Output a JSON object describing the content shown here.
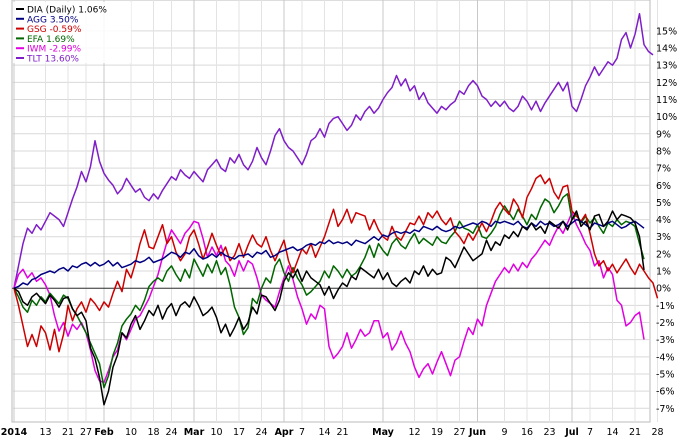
{
  "chart_data": {
    "type": "line",
    "title": "",
    "xlabel": "",
    "ylabel": "",
    "y_unit": "%",
    "ylim": [
      -7.8,
      16.8
    ],
    "y_ticks": [
      -7,
      -6,
      -5,
      -4,
      -3,
      -2,
      -1,
      0,
      1,
      2,
      3,
      4,
      5,
      6,
      7,
      8,
      9,
      10,
      11,
      12,
      13,
      14,
      15
    ],
    "y_tick_labels": [
      "-7%",
      "-6%",
      "-5%",
      "-4%",
      "-3%",
      "-2%",
      "-1%",
      "0%",
      "1%",
      "2%",
      "3%",
      "4%",
      "5%",
      "6%",
      "7%",
      "8%",
      "9%",
      "10%",
      "11%",
      "12%",
      "13%",
      "14%",
      "15%"
    ],
    "grid": true,
    "legend_placement": "top-left",
    "x_ticks": [
      {
        "label": "2014",
        "x": 0,
        "major": true
      },
      {
        "label": "13",
        "x": 7,
        "major": false
      },
      {
        "label": "21",
        "x": 12,
        "major": false
      },
      {
        "label": "27",
        "x": 16,
        "major": false
      },
      {
        "label": "Feb",
        "x": 20,
        "major": true
      },
      {
        "label": "10",
        "x": 26,
        "major": false
      },
      {
        "label": "18",
        "x": 31,
        "major": false
      },
      {
        "label": "24",
        "x": 35,
        "major": false
      },
      {
        "label": "Mar",
        "x": 40,
        "major": true
      },
      {
        "label": "10",
        "x": 45,
        "major": false
      },
      {
        "label": "17",
        "x": 50,
        "major": false
      },
      {
        "label": "24",
        "x": 55,
        "major": false
      },
      {
        "label": "Apr",
        "x": 60,
        "major": true
      },
      {
        "label": "7",
        "x": 64,
        "major": false
      },
      {
        "label": "14",
        "x": 69,
        "major": false
      },
      {
        "label": "21",
        "x": 73,
        "major": false
      },
      {
        "label": "May",
        "x": 82,
        "major": true
      },
      {
        "label": "12",
        "x": 89,
        "major": false
      },
      {
        "label": "19",
        "x": 94,
        "major": false
      },
      {
        "label": "27",
        "x": 99,
        "major": false
      },
      {
        "label": "Jun",
        "x": 103,
        "major": true
      },
      {
        "label": "9",
        "x": 109,
        "major": false
      },
      {
        "label": "16",
        "x": 114,
        "major": false
      },
      {
        "label": "23",
        "x": 119,
        "major": false
      },
      {
        "label": "Jul",
        "x": 124,
        "major": true
      },
      {
        "label": "7",
        "x": 128,
        "major": false
      },
      {
        "label": "14",
        "x": 133,
        "major": false
      },
      {
        "label": "21",
        "x": 138,
        "major": false
      },
      {
        "label": "28",
        "x": 143,
        "major": false
      }
    ],
    "series": [
      {
        "name": "DIA (Daily)",
        "legend_value": "1.06%",
        "color": "#000000",
        "values": [
          0.0,
          -0.2,
          -0.8,
          -1.0,
          -0.5,
          -0.3,
          -0.6,
          -0.9,
          -0.4,
          -0.7,
          -1.1,
          -0.6,
          -0.5,
          -1.2,
          -1.6,
          -1.4,
          -1.9,
          -3.5,
          -4.1,
          -5.2,
          -6.8,
          -6.0,
          -4.6,
          -3.9,
          -2.6,
          -2.9,
          -2.1,
          -1.6,
          -2.4,
          -1.9,
          -1.3,
          -1.6,
          -1.0,
          -1.8,
          -1.2,
          -0.9,
          -1.6,
          -1.0,
          -0.8,
          -1.1,
          -0.5,
          -1.0,
          -1.6,
          -1.4,
          -1.1,
          -1.7,
          -2.6,
          -2.1,
          -2.8,
          -2.3,
          -1.7,
          -2.4,
          -2.0,
          -1.1,
          -1.5,
          -0.4,
          -0.5,
          -0.9,
          -1.3,
          -0.7,
          0.4,
          0.9,
          0.6,
          1.1,
          0.4,
          1.0,
          0.6,
          0.4,
          0.2,
          -0.4,
          0.1,
          -0.6,
          -0.1,
          0.3,
          0.1,
          0.7,
          0.5,
          1.2,
          1.0,
          0.8,
          0.6,
          1.1,
          0.5,
          0.9,
          0.3,
          0.1,
          0.4,
          0.6,
          0.3,
          1.0,
          0.8,
          1.3,
          0.7,
          1.1,
          0.8,
          0.9,
          1.8,
          1.6,
          1.2,
          1.8,
          2.4,
          2.0,
          1.6,
          1.8,
          2.0,
          2.8,
          2.2,
          2.7,
          2.5,
          3.1,
          2.9,
          3.3,
          3.0,
          3.6,
          3.4,
          3.8,
          3.4,
          3.6,
          3.2,
          3.9,
          3.7,
          3.5,
          3.9,
          3.4,
          4.0,
          4.5,
          3.6,
          3.9,
          3.4,
          4.2,
          4.3,
          3.6,
          3.9,
          4.5,
          4.0,
          4.3,
          4.2,
          4.1,
          3.8,
          3.0,
          1.06
        ]
      },
      {
        "name": "AGG",
        "legend_value": "3.50%",
        "color": "#000080",
        "values": [
          0.0,
          0.1,
          0.3,
          0.2,
          0.5,
          0.6,
          0.8,
          0.9,
          1.0,
          0.9,
          1.1,
          1.2,
          1.0,
          1.3,
          1.2,
          1.4,
          1.5,
          1.3,
          1.5,
          1.3,
          1.4,
          1.6,
          1.3,
          1.5,
          1.2,
          1.3,
          1.4,
          1.6,
          1.5,
          1.6,
          1.8,
          1.5,
          1.6,
          1.7,
          1.9,
          2.1,
          2.0,
          1.8,
          2.1,
          2.0,
          2.3,
          1.9,
          1.7,
          1.8,
          2.0,
          1.8,
          2.1,
          1.9,
          1.8,
          1.7,
          1.9,
          1.9,
          2.0,
          1.8,
          2.1,
          2.0,
          2.2,
          1.8,
          1.9,
          2.1,
          2.2,
          2.3,
          2.4,
          2.2,
          2.3,
          2.5,
          2.6,
          2.5,
          2.7,
          2.6,
          2.8,
          2.6,
          2.7,
          2.6,
          2.7,
          2.5,
          2.8,
          2.7,
          2.6,
          2.8,
          3.0,
          2.8,
          3.1,
          3.0,
          3.2,
          3.3,
          3.2,
          3.3,
          3.2,
          3.4,
          3.3,
          3.6,
          3.5,
          3.4,
          3.6,
          3.4,
          3.3,
          3.4,
          3.6,
          3.5,
          3.6,
          3.7,
          3.8,
          3.7,
          3.9,
          3.8,
          3.6,
          3.9,
          3.8,
          3.9,
          3.8,
          3.7,
          3.9,
          3.6,
          3.5,
          3.8,
          3.6,
          3.9,
          3.7,
          3.8,
          3.6,
          3.7,
          3.9,
          3.6,
          3.8,
          4.0,
          3.9,
          3.7,
          3.5,
          3.8,
          3.7,
          3.6,
          3.8,
          3.9,
          3.7,
          3.5,
          3.6,
          3.8,
          3.9,
          3.7,
          3.5
        ]
      },
      {
        "name": "GSG",
        "legend_value": "-0.59%",
        "color": "#cc0000",
        "values": [
          0.0,
          -1.0,
          -2.2,
          -3.4,
          -2.7,
          -3.4,
          -2.2,
          -2.6,
          -3.6,
          -2.4,
          -3.7,
          -2.7,
          -1.0,
          -1.9,
          -1.2,
          -0.8,
          -1.4,
          -0.6,
          -0.9,
          -1.3,
          -0.8,
          -1.1,
          -0.3,
          0.4,
          -0.2,
          1.1,
          0.6,
          1.5,
          2.6,
          3.4,
          2.4,
          2.3,
          3.0,
          3.7,
          2.6,
          3.0,
          2.1,
          1.6,
          2.0,
          3.0,
          3.4,
          2.6,
          1.7,
          2.4,
          3.2,
          2.5,
          1.9,
          2.4,
          1.6,
          1.9,
          2.6,
          1.8,
          2.5,
          3.1,
          2.6,
          2.4,
          3.0,
          2.2,
          1.6,
          2.2,
          2.8,
          1.6,
          0.9,
          1.6,
          2.3,
          2.0,
          2.6,
          1.8,
          2.4,
          3.0,
          3.8,
          4.6,
          3.6,
          4.0,
          4.6,
          3.8,
          4.4,
          4.3,
          4.2,
          3.4,
          4.0,
          3.4,
          3.0,
          2.8,
          3.6,
          3.0,
          2.8,
          3.3,
          3.8,
          3.7,
          4.2,
          3.7,
          4.4,
          4.1,
          4.5,
          4.0,
          3.7,
          4.1,
          3.3,
          3.0,
          2.6,
          3.2,
          2.8,
          3.3,
          3.8,
          3.3,
          3.9,
          4.6,
          5.0,
          4.6,
          4.3,
          5.2,
          4.8,
          4.1,
          5.3,
          5.8,
          6.4,
          6.6,
          6.1,
          6.4,
          5.6,
          5.2,
          5.9,
          6.0,
          4.5,
          4.2,
          3.9,
          4.3,
          3.2,
          2.0,
          1.3,
          1.6,
          1.0,
          1.4,
          0.9,
          1.3,
          1.7,
          1.2,
          0.8,
          1.4,
          1.0,
          0.6,
          0.3,
          -0.59
        ]
      },
      {
        "name": "EFA",
        "legend_value": "1.69%",
        "color": "#006600",
        "values": [
          0.0,
          -0.5,
          -1.1,
          -1.4,
          -0.7,
          -1.0,
          -0.5,
          -0.8,
          -0.3,
          -0.6,
          -0.9,
          -0.4,
          -0.6,
          -1.2,
          -1.6,
          -2.1,
          -2.6,
          -3.2,
          -3.8,
          -4.4,
          -5.8,
          -5.1,
          -3.9,
          -3.2,
          -2.2,
          -1.8,
          -1.5,
          -1.0,
          -1.3,
          -0.7,
          0.1,
          0.4,
          0.6,
          0.4,
          1.0,
          1.3,
          0.8,
          0.4,
          1.1,
          0.6,
          1.7,
          1.2,
          0.7,
          1.4,
          0.9,
          1.6,
          0.8,
          1.2,
          0.2,
          -1.1,
          -1.7,
          -2.7,
          -2.3,
          -0.6,
          -0.9,
          0.0,
          0.6,
          0.3,
          1.3,
          1.7,
          0.9,
          0.4,
          1.2,
          0.6,
          0.2,
          -0.4,
          -0.2,
          0.1,
          0.4,
          1.0,
          0.6,
          1.3,
          1.0,
          0.6,
          1.1,
          0.7,
          0.9,
          1.3,
          1.8,
          2.5,
          1.8,
          2.6,
          2.2,
          1.9,
          2.6,
          2.9,
          2.5,
          2.3,
          2.8,
          3.2,
          2.6,
          2.9,
          2.7,
          2.5,
          3.0,
          2.7,
          2.6,
          3.0,
          3.3,
          3.9,
          3.5,
          3.4,
          3.2,
          3.7,
          3.0,
          2.9,
          3.2,
          3.6,
          4.3,
          4.8,
          4.4,
          4.0,
          4.6,
          4.2,
          3.7,
          4.3,
          4.0,
          4.7,
          5.2,
          5.0,
          4.4,
          4.8,
          5.3,
          5.5,
          4.0,
          4.3,
          3.8,
          4.2,
          3.8,
          4.1,
          3.6,
          3.2,
          3.8,
          3.6,
          4.0,
          3.7,
          3.9,
          3.8,
          3.6,
          2.6,
          1.69
        ]
      },
      {
        "name": "IWM",
        "legend_value": "-2.99%",
        "color": "#e000e0",
        "values": [
          0.0,
          0.8,
          1.1,
          0.6,
          0.9,
          0.4,
          0.6,
          0.2,
          -0.4,
          -1.6,
          -2.5,
          -2.0,
          -2.8,
          -2.1,
          -2.4,
          -2.0,
          -2.6,
          -3.6,
          -4.8,
          -5.4,
          -5.5,
          -4.8,
          -4.0,
          -3.6,
          -2.6,
          -3.0,
          -2.4,
          -1.8,
          -1.6,
          -1.1,
          -0.6,
          0.1,
          0.8,
          1.8,
          2.7,
          3.4,
          3.0,
          2.6,
          3.2,
          3.5,
          3.9,
          3.8,
          2.9,
          1.8,
          2.4,
          1.9,
          2.5,
          1.6,
          1.3,
          0.7,
          1.6,
          1.0,
          1.6,
          1.4,
          0.6,
          -0.4,
          -0.7,
          -0.9,
          -1.1,
          -0.2,
          0.6,
          1.3,
          0.5,
          -0.5,
          -1.2,
          -2.1,
          -1.5,
          -1.8,
          -1.0,
          -1.2,
          -3.4,
          -4.1,
          -3.8,
          -3.4,
          -2.6,
          -3.5,
          -3.0,
          -2.4,
          -2.8,
          -2.6,
          -1.9,
          -1.9,
          -2.9,
          -2.6,
          -3.6,
          -3.2,
          -2.5,
          -3.2,
          -3.7,
          -4.6,
          -5.2,
          -4.7,
          -4.4,
          -5.0,
          -4.3,
          -3.7,
          -4.4,
          -5.1,
          -4.2,
          -4.0,
          -3.1,
          -2.3,
          -2.7,
          -1.8,
          -2.2,
          -1.0,
          -0.3,
          0.4,
          0.8,
          1.2,
          0.9,
          1.4,
          1.0,
          1.5,
          1.2,
          1.7,
          2.0,
          2.4,
          2.8,
          2.5,
          3.1,
          3.6,
          3.2,
          3.8,
          4.4,
          3.7,
          3.2,
          2.6,
          2.2,
          1.3,
          1.6,
          0.6,
          1.2,
          0.8,
          -0.7,
          -1.0,
          -2.2,
          -2.0,
          -1.6,
          -1.4,
          -2.99
        ]
      },
      {
        "name": "TLT",
        "legend_value": "13.60%",
        "color": "#7f1ec8",
        "values": [
          0.0,
          1.3,
          2.6,
          3.5,
          3.2,
          3.7,
          3.4,
          3.9,
          4.4,
          4.2,
          4.0,
          3.6,
          4.4,
          5.2,
          5.9,
          6.8,
          6.2,
          7.1,
          8.6,
          7.4,
          6.7,
          6.3,
          6.0,
          5.5,
          5.8,
          6.4,
          6.0,
          5.6,
          5.8,
          5.3,
          5.1,
          5.5,
          5.2,
          5.7,
          6.1,
          6.5,
          6.3,
          6.9,
          6.6,
          6.4,
          6.8,
          6.5,
          6.2,
          6.9,
          7.2,
          7.5,
          7.0,
          6.8,
          7.6,
          7.3,
          7.8,
          7.2,
          6.9,
          7.4,
          8.2,
          7.6,
          7.2,
          8.0,
          8.9,
          9.3,
          8.6,
          8.2,
          8.0,
          7.6,
          7.2,
          7.8,
          8.6,
          8.8,
          9.3,
          8.8,
          9.6,
          9.9,
          10.0,
          9.6,
          9.2,
          9.5,
          10.1,
          9.8,
          10.3,
          10.6,
          10.2,
          10.5,
          11.0,
          11.4,
          11.7,
          12.4,
          11.8,
          12.2,
          11.5,
          11.8,
          11.0,
          11.4,
          10.8,
          10.5,
          10.2,
          10.6,
          10.4,
          10.7,
          10.9,
          11.5,
          11.3,
          11.8,
          12.1,
          11.8,
          11.2,
          11.0,
          10.6,
          10.9,
          10.6,
          10.9,
          10.5,
          10.3,
          10.6,
          11.2,
          10.9,
          10.4,
          10.9,
          10.3,
          10.8,
          11.2,
          11.6,
          12.0,
          11.5,
          12.0,
          10.6,
          10.3,
          11.0,
          11.8,
          12.3,
          12.9,
          12.4,
          12.8,
          13.2,
          13.0,
          13.4,
          14.5,
          14.9,
          14.0,
          14.8,
          16.0,
          14.2,
          13.8,
          13.6
        ]
      }
    ]
  }
}
